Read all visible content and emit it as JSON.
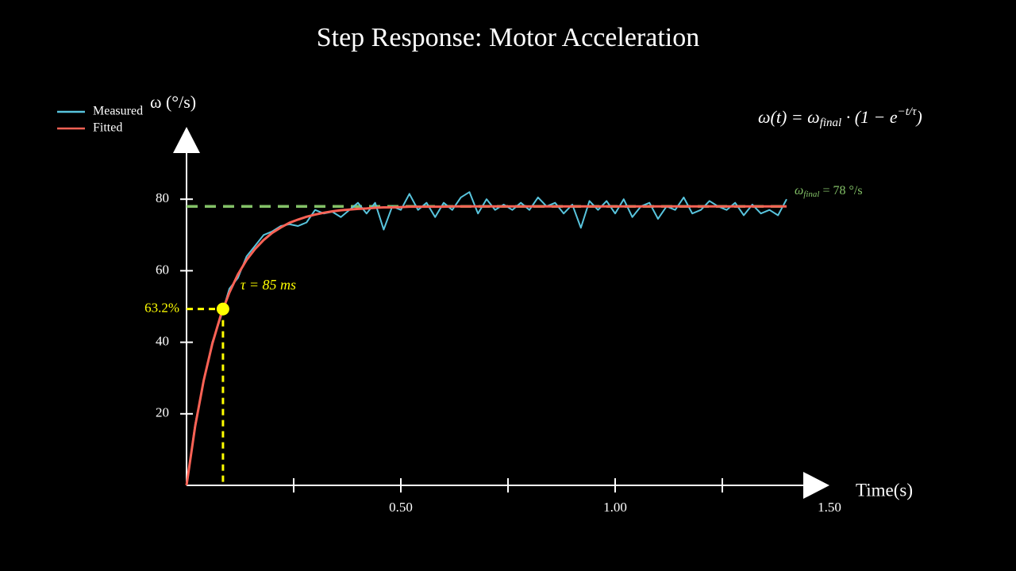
{
  "chart_data": {
    "type": "line",
    "title": "Step Response: Motor Acceleration",
    "x_label": "Time(s)",
    "y_label": "ω (°/s)",
    "xlim": [
      0,
      1.5
    ],
    "ylim": [
      0,
      98
    ],
    "xticks": [
      {
        "value": 0.5,
        "label": "0.50"
      },
      {
        "value": 1,
        "label": "1.00"
      },
      {
        "value": 1.5,
        "label": "1.50"
      }
    ],
    "x_minor_ticks": [
      0.25,
      0.75,
      1.25
    ],
    "yticks": [
      20,
      40,
      60,
      80
    ],
    "x": [
      0,
      0.02,
      0.04,
      0.06,
      0.08,
      0.1,
      0.12,
      0.14,
      0.16,
      0.18,
      0.2,
      0.22,
      0.24,
      0.26,
      0.28,
      0.3,
      0.32,
      0.34,
      0.36,
      0.38,
      0.4,
      0.42,
      0.44,
      0.46,
      0.48,
      0.5,
      0.52,
      0.54,
      0.56,
      0.58,
      0.6,
      0.62,
      0.64,
      0.66,
      0.68,
      0.7,
      0.72,
      0.74,
      0.76,
      0.78,
      0.8,
      0.82,
      0.84,
      0.86,
      0.88,
      0.9,
      0.92,
      0.94,
      0.96,
      0.98,
      1,
      1.02,
      1.04,
      1.06,
      1.08,
      1.1,
      1.12,
      1.14,
      1.16,
      1.18,
      1.2,
      1.22,
      1.24,
      1.26,
      1.28,
      1.3,
      1.32,
      1.34,
      1.36,
      1.38,
      1.4
    ],
    "series": [
      {
        "name": "Measured",
        "color": "#58c4dd",
        "values": [
          0,
          17,
          29,
          40,
          47,
          55,
          58,
          64,
          67,
          70,
          71,
          72.5,
          73,
          72.5,
          73.5,
          77,
          76,
          76.5,
          75,
          77,
          79,
          76,
          79,
          71.5,
          78,
          77,
          81.5,
          77,
          79,
          75,
          79,
          77,
          80.5,
          82,
          76,
          80,
          77,
          78.5,
          77,
          79,
          77,
          80.5,
          78,
          79,
          76,
          78.5,
          72,
          79.5,
          77,
          79.5,
          76,
          80,
          75,
          78,
          79,
          74.5,
          78,
          77,
          80.5,
          76,
          77,
          79.5,
          78,
          77,
          79,
          75.5,
          78.5,
          76,
          77,
          75.5,
          80
        ]
      },
      {
        "name": "Fitted",
        "color": "#fc6255",
        "values": [
          0,
          16.4,
          29.3,
          39.5,
          47.6,
          53.9,
          59,
          63,
          66.1,
          68.6,
          70.6,
          72.1,
          73.4,
          74.3,
          75.1,
          75.7,
          76.2,
          76.6,
          76.9,
          77.1,
          77.3,
          77.4,
          77.6,
          77.7,
          77.7,
          77.8,
          77.9,
          77.9,
          77.9,
          77.9,
          77.9,
          78,
          78,
          78,
          78,
          78,
          78,
          78,
          78,
          78,
          78,
          78,
          78,
          78,
          78,
          78,
          78,
          78,
          78,
          78,
          78,
          78,
          78,
          78,
          78,
          78,
          78,
          78,
          78,
          78,
          78,
          78,
          78,
          78,
          78,
          78,
          78,
          78,
          78,
          78,
          78
        ]
      }
    ],
    "final_value": 78,
    "final_color": "#83c167",
    "final_label": {
      "symbol": "ω",
      "sub": "final",
      "rest": " = 78 °/s"
    },
    "tau_marker": {
      "x": 0.085,
      "y": 49.3
    },
    "tau_color": "#ffff00",
    "tau_marker_label": "63.2%",
    "tau_label": "τ = 85 ms",
    "formula": {
      "lhs": "ω(t) = ω",
      "sub": "final",
      "mid": " · (1 − e",
      "sup": "−t/τ",
      "end": ")"
    }
  }
}
